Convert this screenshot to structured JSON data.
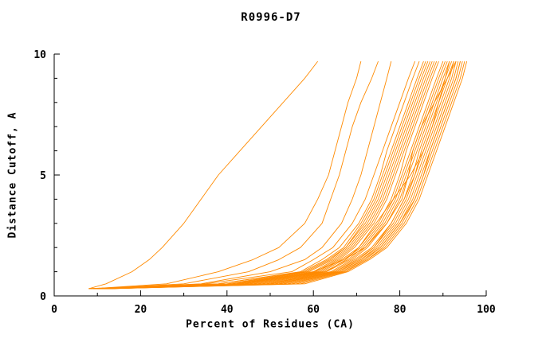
{
  "chart_data": {
    "type": "line",
    "title": "R0996-D7",
    "xlabel": "Percent of Residues (CA)",
    "ylabel": "Distance Cutoff, A",
    "xlim": [
      0,
      100
    ],
    "ylim": [
      0,
      10
    ],
    "x_major_ticks": [
      0,
      20,
      40,
      60,
      80,
      100
    ],
    "x_minor_ticks": [
      10,
      30,
      50,
      70,
      90
    ],
    "y_major_ticks": [
      0,
      5,
      10
    ],
    "y_minor_ticks": [
      1,
      2,
      3,
      4,
      6,
      7,
      8,
      9
    ],
    "grid": false,
    "legend": "none",
    "line_color": "#ff8a00",
    "axis_color": "#000000",
    "y_levels": [
      0.3,
      0.5,
      1,
      1.5,
      2,
      3,
      4,
      5,
      6,
      7,
      8,
      9,
      9.7
    ],
    "series": [
      [
        8,
        12,
        18,
        22,
        25,
        30,
        34,
        38,
        43,
        48,
        53,
        58,
        61
      ],
      [
        9,
        26,
        38,
        46,
        52,
        58,
        61,
        63.5,
        65,
        66.5,
        68,
        70,
        71
      ],
      [
        10,
        30,
        45,
        52,
        57,
        62,
        64,
        66,
        67.5,
        69,
        71,
        73.5,
        75
      ],
      [
        11,
        34,
        50,
        58,
        62,
        66.5,
        69,
        71,
        72.5,
        74,
        75.5,
        77,
        78
      ],
      [
        8,
        35,
        55,
        60,
        64.5,
        69,
        72,
        74,
        76,
        78,
        80,
        82,
        83.5
      ],
      [
        8.5,
        38,
        57,
        62,
        66,
        70.5,
        73.5,
        75.5,
        77,
        79,
        81,
        83,
        84.5
      ],
      [
        8,
        38,
        57.5,
        63,
        67,
        71,
        74,
        76,
        78,
        80,
        82,
        84,
        85.5
      ],
      [
        9,
        40,
        58,
        63.5,
        67.5,
        71.5,
        74.5,
        76.5,
        78.5,
        80.5,
        82.5,
        84.5,
        86
      ],
      [
        9,
        41,
        58.5,
        64,
        67.5,
        72,
        75,
        77,
        79,
        81,
        83,
        85,
        86.5
      ],
      [
        9.5,
        42,
        59,
        64.5,
        68,
        72.5,
        75.5,
        77.5,
        79.5,
        81.5,
        83.5,
        85.5,
        87
      ],
      [
        9.5,
        42.5,
        60,
        65,
        68.5,
        73,
        76,
        78,
        80,
        82,
        84,
        86,
        87.5
      ],
      [
        10,
        43,
        60.5,
        65.5,
        69,
        73.5,
        76.5,
        78.5,
        80.5,
        82.5,
        84.5,
        86.5,
        88
      ],
      [
        10,
        44,
        61,
        66,
        69.5,
        74,
        77,
        79,
        81,
        83,
        85,
        87,
        88.5
      ],
      [
        10,
        45,
        61.5,
        66.5,
        70.5,
        75,
        78,
        80,
        81.5,
        83.5,
        85.5,
        87.5,
        89
      ],
      [
        10.5,
        46,
        62,
        67,
        71,
        75.5,
        78.5,
        80.5,
        82.5,
        84.5,
        86.5,
        88.5,
        90
      ],
      [
        10.5,
        47,
        62.5,
        68,
        71.5,
        76,
        79,
        81,
        83,
        85,
        87,
        89,
        90.5
      ],
      [
        11,
        48,
        63,
        68.5,
        72,
        76.5,
        79.5,
        81.5,
        83.5,
        85.5,
        87.5,
        89.5,
        91
      ],
      [
        11,
        49,
        64,
        69,
        72.5,
        77,
        80,
        82,
        84,
        86,
        88,
        90,
        91.5
      ],
      [
        11.5,
        50,
        64.5,
        69.5,
        73.5,
        78,
        81,
        83,
        84.5,
        86.5,
        88.5,
        90.5,
        92
      ],
      [
        11.5,
        51,
        65,
        70,
        74,
        78,
        81,
        83.5,
        85,
        87,
        89,
        91,
        92.5
      ],
      [
        12,
        52,
        65,
        70.5,
        74,
        78.5,
        81.5,
        83.5,
        85.5,
        87.5,
        89.5,
        91.5,
        92.5
      ],
      [
        12,
        52,
        65.5,
        71,
        74.5,
        79,
        82,
        84,
        86,
        88,
        90,
        92,
        93
      ],
      [
        12,
        53,
        66,
        71,
        75,
        79.5,
        82.5,
        84.5,
        86.5,
        88.5,
        90.5,
        92.5,
        93.5
      ],
      [
        12,
        54,
        66.5,
        71.5,
        75.5,
        80,
        83,
        85,
        87,
        89,
        91,
        93,
        94
      ],
      [
        12.5,
        55,
        66.5,
        72,
        75.5,
        80,
        83.5,
        85.5,
        87,
        89,
        91,
        93,
        94
      ],
      [
        12.5,
        56,
        67,
        72.5,
        76,
        80.5,
        83.5,
        85.5,
        87.5,
        89.5,
        91.5,
        93.5,
        94.5
      ],
      [
        13,
        57,
        67.5,
        72.5,
        76.5,
        81,
        84,
        86,
        88,
        90,
        92,
        94,
        95
      ],
      [
        13,
        58,
        68,
        73,
        77,
        81.5,
        84.5,
        86.5,
        88.5,
        90.5,
        92.5,
        94.5,
        95.5
      ],
      [
        10,
        44,
        60,
        67,
        72,
        77,
        80.5,
        82,
        83,
        85,
        88,
        91,
        93
      ],
      [
        11,
        50,
        63,
        67.5,
        70.5,
        74.5,
        78.5,
        82.5,
        85.5,
        87.5,
        89,
        90.5,
        91.5
      ]
    ]
  }
}
